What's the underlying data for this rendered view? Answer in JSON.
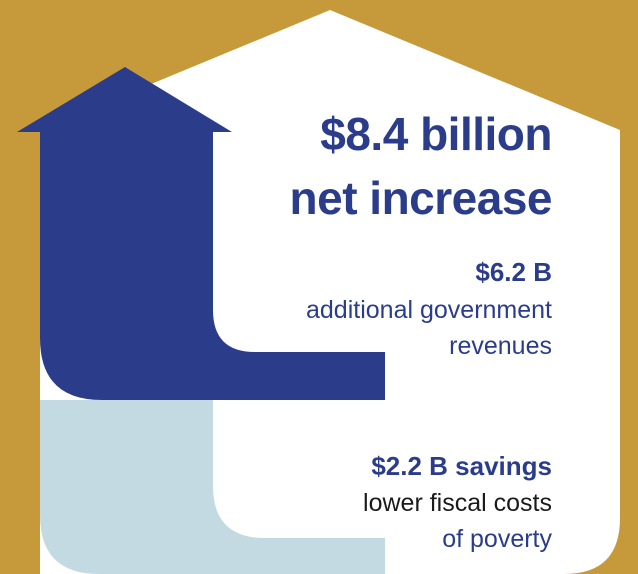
{
  "colors": {
    "background": "#c69a3a",
    "house_fill": "#ffffff",
    "arrow_navy": "#2b3d8a",
    "light_blue_band": "#c4dae2",
    "text_navy": "#2b3d8a",
    "text_dark": "#1a1a1a"
  },
  "headline": {
    "line1": "$8.4 billion",
    "line2": "net increase"
  },
  "revenues": {
    "amount": "$6.2 B",
    "line1": "additional government",
    "line2": "revenues"
  },
  "savings": {
    "amount": "$2.2 B savings",
    "line1": "lower fiscal costs",
    "line2": "of poverty"
  },
  "icons": {
    "house": "house-shape",
    "arrow": "upward-arrow"
  }
}
